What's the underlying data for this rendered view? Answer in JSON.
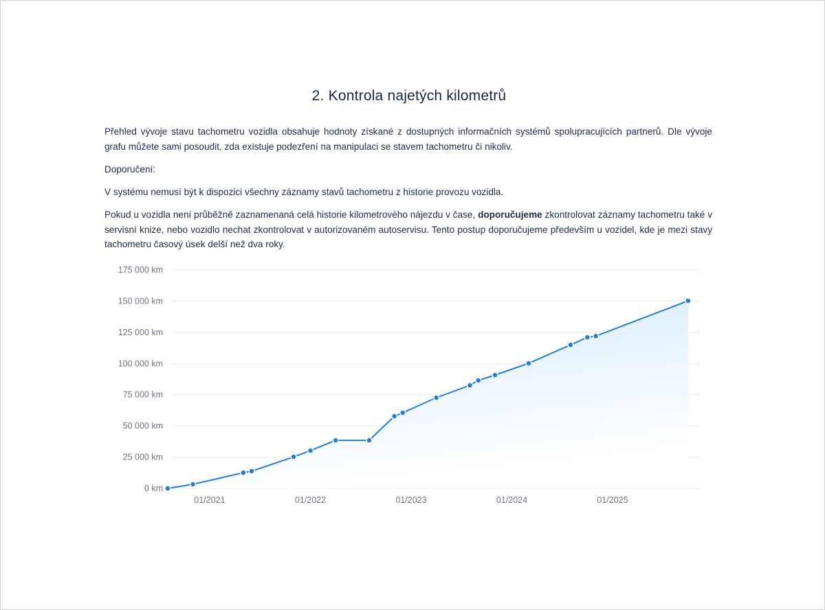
{
  "title": "2. Kontrola najetých kilometrů",
  "intro": "Přehled vývoje stavu tachometru vozidla obsahuje hodnoty získané z dostupných informačních systémů spolupracujících partnerů. Dle vývoje grafu můžete sami posoudit, zda existuje podezření na manipulaci se stavem tachometru či nikoliv.",
  "recommendation_heading": "Doporučení:",
  "note1": "V systému nemusí být k dispozici všechny záznamy stavů tachometru z historie provozu vozidla.",
  "note2_before": "Pokud u vozidla není průběžně zaznamenaná celá historie kilometrového nájezdu v čase, ",
  "note2_bold": "doporučujeme",
  "note2_after": " zkontrolovat záznamy tachometru také v servisní knize, nebo vozidlo nechat zkontrolovat v autorizovaném autoservisu. Tento postup doporučujeme především u vozidel, kde je mezi stavy tachometru časový úsek delší než dva roky.",
  "colors": {
    "line": "#1a7fe0",
    "fill": "#d7ecfa",
    "grid": "#e6e9ee",
    "text": "#1b2a4a"
  },
  "chart_data": {
    "type": "area",
    "xlabel": "",
    "ylabel": "",
    "grid": true,
    "ylim": [
      0,
      175000
    ],
    "y_ticks": [
      {
        "value": 0,
        "label": "0 km"
      },
      {
        "value": 25000,
        "label": "25 000 km"
      },
      {
        "value": 50000,
        "label": "50 000 km"
      },
      {
        "value": 75000,
        "label": "75 000 km"
      },
      {
        "value": 100000,
        "label": "100 000 km"
      },
      {
        "value": 125000,
        "label": "125 000 km"
      },
      {
        "value": 150000,
        "label": "150 000 km"
      },
      {
        "value": 175000,
        "label": "175 000 km"
      }
    ],
    "x_ticks": [
      {
        "value": "2021-01",
        "label": "01/2021"
      },
      {
        "value": "2022-01",
        "label": "01/2022"
      },
      {
        "value": "2023-01",
        "label": "01/2023"
      },
      {
        "value": "2024-01",
        "label": "01/2024"
      },
      {
        "value": "2025-01",
        "label": "01/2025"
      }
    ],
    "series": [
      {
        "points": [
          {
            "x": "2020-08",
            "y": 0
          },
          {
            "x": "2020-11",
            "y": 3300
          },
          {
            "x": "2021-05",
            "y": 12600
          },
          {
            "x": "2021-06",
            "y": 13800
          },
          {
            "x": "2021-11",
            "y": 25300
          },
          {
            "x": "2022-01",
            "y": 30300
          },
          {
            "x": "2022-04",
            "y": 38500
          },
          {
            "x": "2022-08",
            "y": 38500
          },
          {
            "x": "2022-11",
            "y": 57800
          },
          {
            "x": "2022-12",
            "y": 60600
          },
          {
            "x": "2023-04",
            "y": 72700
          },
          {
            "x": "2023-08",
            "y": 82600
          },
          {
            "x": "2023-09",
            "y": 86500
          },
          {
            "x": "2023-11",
            "y": 90800
          },
          {
            "x": "2024-03",
            "y": 100200
          },
          {
            "x": "2024-08",
            "y": 115000
          },
          {
            "x": "2024-10",
            "y": 121000
          },
          {
            "x": "2024-11",
            "y": 122000
          },
          {
            "x": "2025-10",
            "y": 150300
          }
        ]
      }
    ]
  }
}
